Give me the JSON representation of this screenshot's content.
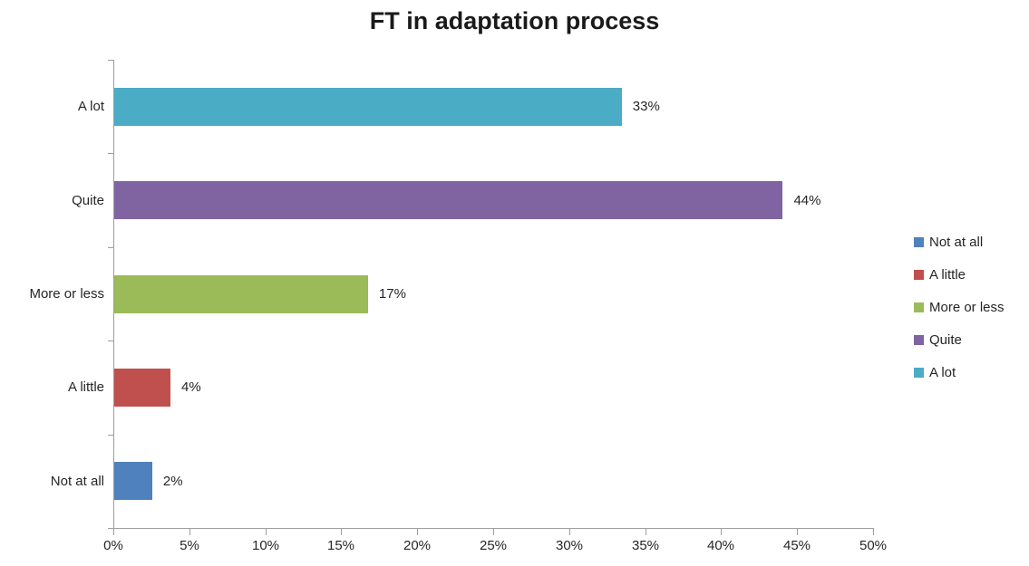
{
  "chart_data": {
    "type": "bar",
    "orientation": "horizontal",
    "title": "FT in adaptation process",
    "categories": [
      "Not at all",
      "A little",
      "More or less",
      "Quite",
      "A lot"
    ],
    "values": [
      2.5,
      3.7,
      16.7,
      44,
      33.4
    ],
    "value_labels": [
      "2%",
      "4%",
      "17%",
      "44%",
      "33%"
    ],
    "colors": [
      "#4F81BD",
      "#C0504D",
      "#9BBB59",
      "#8064A2",
      "#4BACC6"
    ],
    "display_order_top_to_bottom": [
      "A lot",
      "Quite",
      "More or less",
      "A little",
      "Not at all"
    ],
    "xlim": [
      0,
      50
    ],
    "x_tick_values": [
      0,
      5,
      10,
      15,
      20,
      25,
      30,
      35,
      40,
      45,
      50
    ],
    "x_tick_labels": [
      "0%",
      "5%",
      "10%",
      "15%",
      "20%",
      "25%",
      "30%",
      "35%",
      "40%",
      "45%",
      "50%"
    ],
    "grid": false,
    "legend": {
      "position": "right",
      "entries": [
        {
          "label": "Not at all",
          "color": "#4F81BD"
        },
        {
          "label": "A little",
          "color": "#C0504D"
        },
        {
          "label": "More or less",
          "color": "#9BBB59"
        },
        {
          "label": "Quite",
          "color": "#8064A2"
        },
        {
          "label": "A lot",
          "color": "#4BACC6"
        }
      ]
    },
    "axis_color": "#9e9e9e",
    "text_color": "#262626"
  }
}
